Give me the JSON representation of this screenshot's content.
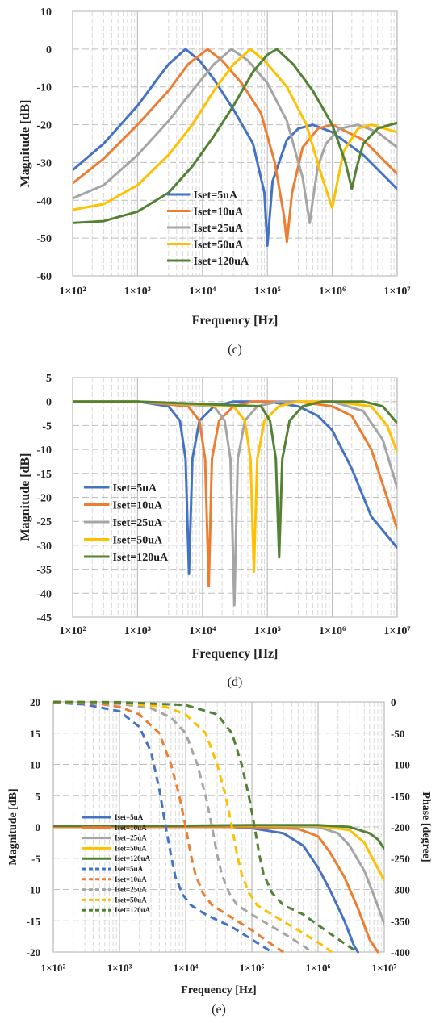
{
  "colors": {
    "s5": "#4472C4",
    "s10": "#ED7D31",
    "s25": "#A5A5A5",
    "s50": "#FFC000",
    "s120": "#548235",
    "grid_major": "#bfbfbf",
    "grid_minor": "#d9d9d9"
  },
  "chart_data": [
    {
      "id": "c",
      "type": "line",
      "caption": "(c)",
      "xlabel": "Frequency [Hz]",
      "ylabel": "Magnitude [dB]",
      "x_scale": "log",
      "xlim": [
        100,
        10000000
      ],
      "ylim": [
        -60,
        10
      ],
      "y_ticks": [
        "10",
        "0",
        "-10",
        "-20",
        "-30",
        "-40",
        "-50",
        "-60"
      ],
      "x_ticks": [
        "1×10²",
        "1×10³",
        "1×10⁴",
        "1×10⁵",
        "1×10⁶",
        "1×10⁷"
      ],
      "legend_position": "lower-left",
      "grid": true,
      "series": [
        {
          "name": "Iset=5uA",
          "color_key": "s5",
          "style": "solid",
          "x": [
            100,
            300,
            1000,
            2000,
            3000,
            5500,
            9000,
            15000,
            30000,
            60000,
            90000,
            100000,
            120000,
            200000,
            300000,
            500000,
            1000000,
            3000000,
            10000000
          ],
          "y": [
            -32,
            -25,
            -15,
            -8,
            -4,
            0,
            -3,
            -8,
            -16,
            -25,
            -38,
            -52,
            -35,
            -24,
            -21,
            -20,
            -22,
            -28,
            -37
          ]
        },
        {
          "name": "Iset=10uA",
          "color_key": "s10",
          "style": "solid",
          "x": [
            100,
            300,
            1000,
            3000,
            6000,
            12000,
            20000,
            40000,
            80000,
            130000,
            180000,
            200000,
            240000,
            350000,
            600000,
            1000000,
            3000000,
            10000000
          ],
          "y": [
            -35.5,
            -29,
            -20,
            -11,
            -4,
            0,
            -3,
            -9,
            -17,
            -30,
            -44,
            -51,
            -38,
            -26,
            -21,
            -20,
            -24,
            -33
          ]
        },
        {
          "name": "Iset=25uA",
          "color_key": "s25",
          "style": "solid",
          "x": [
            100,
            300,
            1000,
            3000,
            7000,
            15000,
            28000,
            50000,
            100000,
            200000,
            350000,
            450000,
            500000,
            600000,
            800000,
            1300000,
            2500000,
            5000000,
            10000000
          ],
          "y": [
            -39.5,
            -36,
            -28,
            -19,
            -11,
            -4,
            0,
            -3,
            -9,
            -19,
            -34,
            -46,
            -40,
            -31,
            -25,
            -21,
            -20,
            -22,
            -26
          ]
        },
        {
          "name": "Iset=50uA",
          "color_key": "s50",
          "style": "solid",
          "x": [
            100,
            300,
            1000,
            3000,
            7000,
            15000,
            30000,
            55000,
            90000,
            200000,
            400000,
            700000,
            1000000,
            1200000,
            1500000,
            2500000,
            4000000,
            10000000
          ],
          "y": [
            -42.5,
            -41,
            -36,
            -28,
            -20,
            -11,
            -4,
            0,
            -3,
            -10,
            -20,
            -34,
            -42,
            -35,
            -27,
            -21,
            -20,
            -22
          ]
        },
        {
          "name": "Iset=120uA",
          "color_key": "s120",
          "style": "solid",
          "x": [
            100,
            300,
            1000,
            3000,
            7000,
            15000,
            30000,
            60000,
            100000,
            140000,
            250000,
            500000,
            1000000,
            1600000,
            2000000,
            2400000,
            3000000,
            5000000,
            10000000
          ],
          "y": [
            -46,
            -45.5,
            -43,
            -38,
            -31,
            -23,
            -15,
            -6,
            -1.5,
            0,
            -4,
            -11,
            -20,
            -30,
            -37,
            -31,
            -25,
            -21,
            -19.5
          ]
        }
      ]
    },
    {
      "id": "d",
      "type": "line",
      "caption": "(d)",
      "xlabel": "Frequency [Hz]",
      "ylabel": "Magnitude [dB]",
      "x_scale": "log",
      "xlim": [
        100,
        10000000
      ],
      "ylim": [
        -45,
        5
      ],
      "y_ticks": [
        "5",
        "0",
        "-5",
        "-10",
        "-15",
        "-20",
        "-25",
        "-30",
        "-35",
        "-40",
        "-45"
      ],
      "x_ticks": [
        "1×10²",
        "1×10³",
        "1×10⁴",
        "1×10⁵",
        "1×10⁶",
        "1×10⁷"
      ],
      "legend_position": "lower-left",
      "grid": true,
      "series": [
        {
          "name": "Iset=5uA",
          "color_key": "s5",
          "style": "solid",
          "x": [
            100,
            1000,
            3000,
            4500,
            5500,
            6200,
            7000,
            9000,
            15000,
            30000,
            100000,
            300000,
            600000,
            1000000,
            2000000,
            4000000,
            10000000
          ],
          "y": [
            0,
            0,
            -1,
            -4,
            -12,
            -36,
            -12,
            -4,
            -1,
            0,
            0,
            -1,
            -3,
            -6,
            -14,
            -24,
            -30.5
          ]
        },
        {
          "name": "Iset=10uA",
          "color_key": "s10",
          "style": "solid",
          "x": [
            100,
            1000,
            6000,
            9000,
            11000,
            12500,
            14000,
            18000,
            30000,
            60000,
            300000,
            1000000,
            2000000,
            4000000,
            10000000
          ],
          "y": [
            0,
            0,
            -1,
            -4,
            -12,
            -38.5,
            -12,
            -4,
            -1,
            0,
            0,
            -1,
            -3,
            -10,
            -26.5
          ]
        },
        {
          "name": "Iset=25uA",
          "color_key": "s25",
          "style": "solid",
          "x": [
            100,
            1000,
            15000,
            22000,
            27000,
            31000,
            35000,
            45000,
            70000,
            150000,
            1000000,
            3000000,
            6000000,
            10000000
          ],
          "y": [
            0,
            0,
            -1,
            -4,
            -12,
            -42.5,
            -12,
            -4,
            -1,
            0,
            0,
            -2,
            -8,
            -18
          ]
        },
        {
          "name": "Iset=50uA",
          "color_key": "s50",
          "style": "solid",
          "x": [
            100,
            1000,
            30000,
            45000,
            55000,
            62000,
            70000,
            90000,
            150000,
            300000,
            1000000,
            4000000,
            7000000,
            10000000
          ],
          "y": [
            0,
            0,
            -1,
            -4,
            -12,
            -35.5,
            -12,
            -4,
            -1,
            0,
            0,
            -1,
            -5,
            -10.5
          ]
        },
        {
          "name": "Iset=120uA",
          "color_key": "s120",
          "style": "solid",
          "x": [
            100,
            1000,
            80000,
            110000,
            135000,
            152000,
            170000,
            220000,
            350000,
            700000,
            3000000,
            6000000,
            10000000
          ],
          "y": [
            0,
            0,
            -1,
            -4,
            -12,
            -32.5,
            -12,
            -4,
            -1,
            0,
            0,
            -1,
            -4.5
          ]
        }
      ]
    },
    {
      "id": "e",
      "type": "line",
      "caption": "(e)",
      "xlabel": "Frequency [Hz]",
      "ylabel": "Magnitude [dB]",
      "y2label": "Phase [degree]",
      "x_scale": "log",
      "xlim": [
        100,
        10000000
      ],
      "ylim": [
        -20,
        20
      ],
      "y2lim": [
        -400,
        0
      ],
      "y_ticks": [
        "20",
        "15",
        "10",
        "5",
        "0",
        "-5",
        "-10",
        "-15",
        "-20"
      ],
      "y2_ticks": [
        "0",
        "-50",
        "-100",
        "-150",
        "-200",
        "-250",
        "-300",
        "-350",
        "-400"
      ],
      "x_ticks": [
        "1×10²",
        "1×10³",
        "1×10⁴",
        "1×10⁵",
        "1×10⁶",
        "1×10⁷"
      ],
      "legend_position": "lower-left",
      "grid": true,
      "series": [
        {
          "name": "Iset=5uA",
          "color_key": "s5",
          "style": "solid",
          "axis": "left",
          "x": [
            100,
            1000,
            10000,
            50000,
            100000,
            300000,
            600000,
            1000000,
            1500000,
            2500000,
            3500000,
            4000000
          ],
          "y": [
            0,
            0,
            0,
            0,
            -0.2,
            -1,
            -3,
            -6.5,
            -10,
            -15,
            -19,
            -20
          ]
        },
        {
          "name": "Iset=10uA",
          "color_key": "s10",
          "style": "solid",
          "axis": "left",
          "x": [
            100,
            1000,
            10000,
            100000,
            500000,
            1000000,
            1500000,
            2500000,
            4000000,
            6000000,
            8000000
          ],
          "y": [
            0,
            0,
            0,
            0,
            -0.3,
            -1.5,
            -4,
            -8,
            -13,
            -18,
            -20
          ]
        },
        {
          "name": "Iset=25uA",
          "color_key": "s25",
          "style": "solid",
          "axis": "left",
          "x": [
            100,
            1000,
            10000,
            100000,
            1000000,
            2000000,
            3000000,
            5000000,
            7000000,
            10000000
          ],
          "y": [
            0.2,
            0.2,
            0.2,
            0.2,
            0,
            -1,
            -3,
            -7,
            -11,
            -15.5
          ]
        },
        {
          "name": "Iset=50uA",
          "color_key": "s50",
          "style": "solid",
          "axis": "left",
          "x": [
            100,
            1000,
            10000,
            100000,
            1000000,
            3000000,
            5000000,
            7000000,
            10000000
          ],
          "y": [
            0.2,
            0.2,
            0.2,
            0.2,
            0.2,
            -0.5,
            -2.5,
            -5.5,
            -8.5
          ]
        },
        {
          "name": "Iset=120uA",
          "color_key": "s120",
          "style": "solid",
          "axis": "left",
          "x": [
            100,
            1000,
            10000,
            100000,
            1000000,
            3000000,
            6000000,
            8000000,
            10000000
          ],
          "y": [
            0.2,
            0.2,
            0.2,
            0.3,
            0.3,
            0,
            -1,
            -2,
            -3.5
          ]
        },
        {
          "name": "Iset=5uA",
          "color_key": "s5",
          "style": "dashed",
          "axis": "right",
          "x": [
            100,
            300,
            1000,
            2000,
            3000,
            4000,
            5000,
            6000,
            7000,
            9000,
            12000,
            20000,
            50000,
            100000,
            200000
          ],
          "y": [
            -1,
            -4,
            -15,
            -40,
            -80,
            -140,
            -200,
            -245,
            -280,
            -308,
            -325,
            -340,
            -360,
            -380,
            -400
          ]
        },
        {
          "name": "Iset=10uA",
          "color_key": "s10",
          "style": "dashed",
          "axis": "right",
          "x": [
            100,
            500,
            1000,
            2000,
            4000,
            6000,
            8000,
            10000,
            12000,
            14000,
            18000,
            25000,
            50000,
            100000,
            200000,
            300000
          ],
          "y": [
            -0.5,
            -3,
            -8,
            -20,
            -50,
            -100,
            -150,
            -200,
            -245,
            -275,
            -305,
            -325,
            -345,
            -365,
            -388,
            -400
          ]
        },
        {
          "name": "Iset=25uA",
          "color_key": "s25",
          "style": "dashed",
          "axis": "right",
          "x": [
            100,
            1000,
            3000,
            6000,
            10000,
            15000,
            20000,
            25000,
            30000,
            35000,
            45000,
            60000,
            100000,
            300000,
            600000,
            800000
          ],
          "y": [
            0,
            -3,
            -10,
            -25,
            -50,
            -100,
            -150,
            -200,
            -245,
            -275,
            -305,
            -325,
            -340,
            -370,
            -390,
            -400
          ]
        },
        {
          "name": "Iset=50uA",
          "color_key": "s50",
          "style": "dashed",
          "axis": "right",
          "x": [
            100,
            1000,
            5000,
            10000,
            20000,
            30000,
            40000,
            50000,
            60000,
            70000,
            90000,
            120000,
            200000,
            600000,
            1200000,
            1600000
          ],
          "y": [
            0,
            -1.5,
            -8,
            -20,
            -50,
            -100,
            -150,
            -200,
            -245,
            -275,
            -305,
            -325,
            -340,
            -370,
            -390,
            -400
          ]
        },
        {
          "name": "Iset=120uA",
          "color_key": "s120",
          "style": "dashed",
          "axis": "right",
          "x": [
            100,
            1000,
            10000,
            30000,
            50000,
            70000,
            90000,
            110000,
            130000,
            150000,
            200000,
            300000,
            600000,
            1500000,
            3000000,
            4000000
          ],
          "y": [
            0,
            -0.5,
            -5,
            -20,
            -50,
            -100,
            -150,
            -200,
            -245,
            -275,
            -305,
            -325,
            -340,
            -370,
            -392,
            -400
          ]
        }
      ]
    }
  ]
}
